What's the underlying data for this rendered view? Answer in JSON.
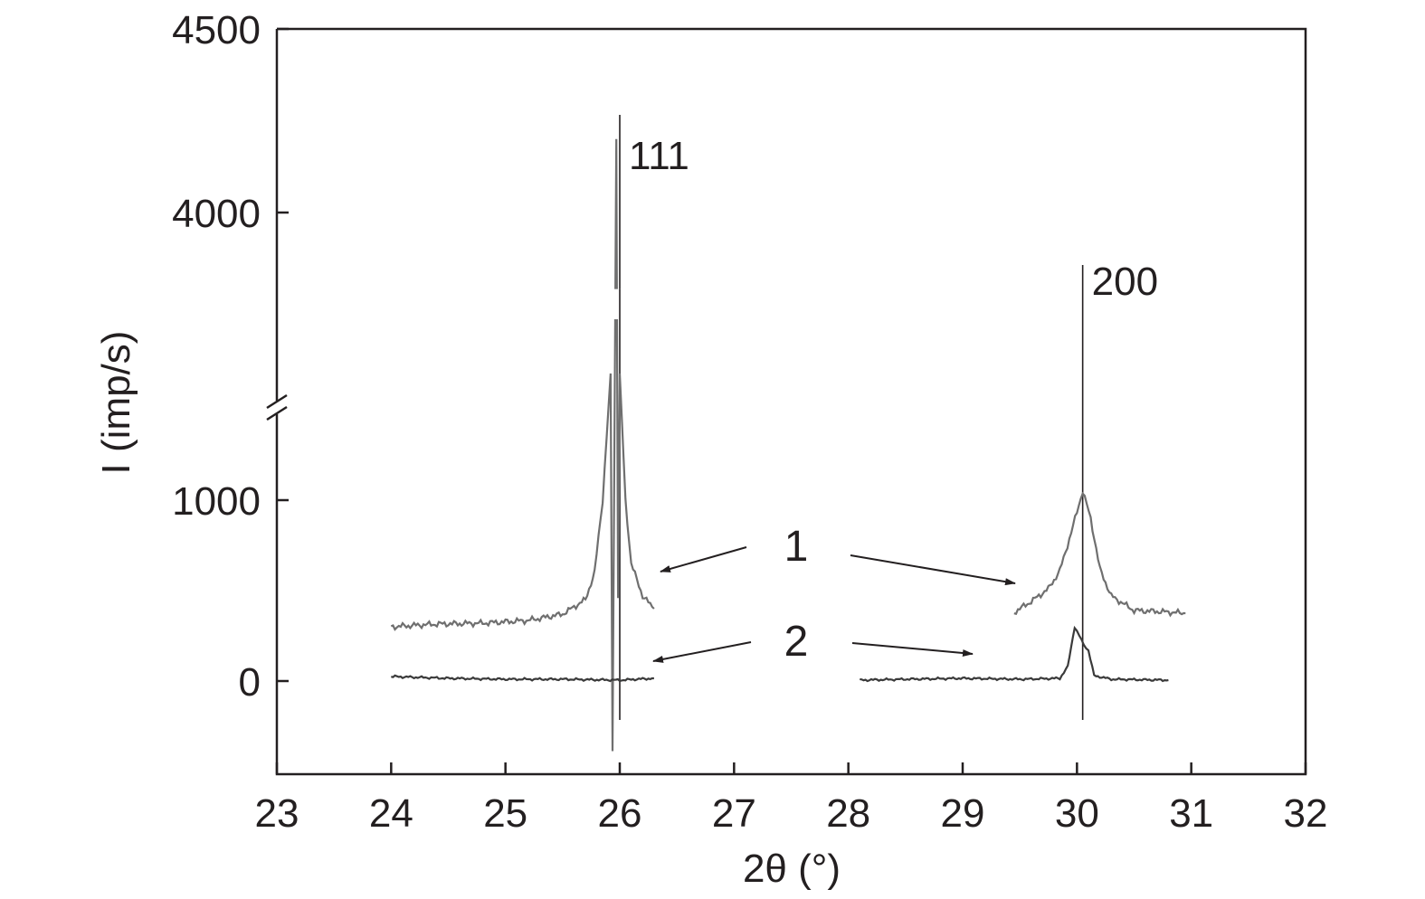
{
  "chart_data": {
    "type": "line",
    "title": "",
    "xlabel": "2θ (°)",
    "ylabel": "I (imp/s)",
    "xlim": [
      23,
      32
    ],
    "x_ticks": [
      "23",
      "24",
      "25",
      "26",
      "27",
      "28",
      "29",
      "30",
      "31",
      "32"
    ],
    "y_ticks": [
      "0",
      "1000",
      "4000",
      "4500"
    ],
    "y_axis_break": true,
    "grid": false,
    "legend": "none",
    "peak_labels": [
      {
        "text": "111",
        "x": 26.0
      },
      {
        "text": "200",
        "x": 30.05
      }
    ],
    "curve_labels": [
      {
        "text": "1",
        "points_to": "upper traces"
      },
      {
        "text": "2",
        "points_to": "lower traces"
      }
    ],
    "series": [
      {
        "name": "1",
        "segments": [
          {
            "x": [
              24.0,
              24.4,
              24.8,
              25.2,
              25.5,
              25.7,
              25.78,
              25.85,
              25.92,
              25.97,
              26.0,
              26.05,
              26.1,
              26.2,
              26.3
            ],
            "y": [
              300,
              315,
              320,
              335,
              370,
              450,
              600,
              1000,
              1700,
              4200,
              1700,
              1000,
              650,
              470,
              400
            ]
          },
          {
            "x": [
              29.45,
              29.6,
              29.75,
              29.85,
              29.95,
              30.05,
              30.12,
              30.2,
              30.3,
              30.5,
              30.7,
              30.95
            ],
            "y": [
              380,
              440,
              510,
              610,
              820,
              1050,
              900,
              620,
              470,
              390,
              385,
              375
            ]
          }
        ],
        "color": "#6f6f6f"
      },
      {
        "name": "2",
        "segments": [
          {
            "x": [
              24.0,
              24.5,
              25.0,
              25.5,
              26.0,
              26.3
            ],
            "y": [
              25,
              15,
              10,
              10,
              5,
              15
            ]
          },
          {
            "x": [
              28.1,
              28.5,
              29.0,
              29.5,
              29.85,
              29.92,
              29.98,
              30.02,
              30.06,
              30.1,
              30.15,
              30.3,
              30.8
            ],
            "y": [
              5,
              10,
              15,
              10,
              15,
              80,
              300,
              250,
              200,
              170,
              30,
              10,
              5
            ]
          }
        ],
        "color": "#3a3a3a"
      }
    ]
  }
}
